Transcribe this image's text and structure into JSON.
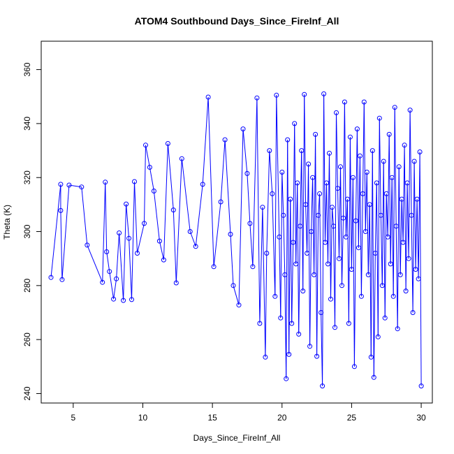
{
  "chart_data": {
    "type": "line",
    "title": "ATOM4 Southbound Days_Since_FireInf_All",
    "xlabel": "Days_Since_FireInf_All",
    "ylabel": "Theta (K)",
    "xlim": [
      2.7,
      30.8
    ],
    "ylim": [
      236.5,
      370.5
    ],
    "x_ticks": [
      5,
      10,
      15,
      20,
      25,
      30
    ],
    "y_ticks": [
      240,
      260,
      280,
      300,
      320,
      340,
      360
    ],
    "grid": false,
    "legend": "none",
    "marker": "open-circle",
    "series": [
      {
        "color": "#0000ff",
        "points": [
          [
            3.4,
            283.0
          ],
          [
            4.1,
            317.5
          ],
          [
            4.1,
            307.8
          ],
          [
            4.2,
            282.2
          ],
          [
            4.7,
            317.2
          ],
          [
            5.6,
            316.5
          ],
          [
            6.0,
            295.0
          ],
          [
            7.1,
            281.2
          ],
          [
            7.3,
            318.3
          ],
          [
            7.4,
            292.5
          ],
          [
            7.6,
            285.2
          ],
          [
            7.9,
            275.0
          ],
          [
            8.1,
            282.5
          ],
          [
            8.3,
            299.5
          ],
          [
            8.6,
            274.5
          ],
          [
            8.8,
            310.2
          ],
          [
            9.0,
            297.5
          ],
          [
            9.2,
            274.8
          ],
          [
            9.4,
            318.5
          ],
          [
            9.6,
            292.0
          ],
          [
            10.1,
            303.0
          ],
          [
            10.2,
            332.0
          ],
          [
            10.5,
            323.8
          ],
          [
            10.8,
            315.0
          ],
          [
            11.2,
            296.5
          ],
          [
            11.5,
            289.5
          ],
          [
            11.8,
            332.6
          ],
          [
            12.2,
            308.0
          ],
          [
            12.4,
            281.0
          ],
          [
            12.8,
            327.0
          ],
          [
            13.4,
            300.0
          ],
          [
            13.8,
            294.5
          ],
          [
            14.3,
            317.5
          ],
          [
            14.7,
            349.8
          ],
          [
            15.1,
            287.0
          ],
          [
            15.6,
            311.0
          ],
          [
            15.9,
            334.0
          ],
          [
            16.3,
            299.0
          ],
          [
            16.5,
            280.0
          ],
          [
            16.9,
            272.8
          ],
          [
            17.2,
            338.0
          ],
          [
            17.5,
            321.5
          ],
          [
            17.7,
            303.0
          ],
          [
            17.9,
            287.0
          ],
          [
            18.2,
            349.5
          ],
          [
            18.4,
            266.0
          ],
          [
            18.6,
            309.0
          ],
          [
            18.8,
            253.5
          ],
          [
            18.9,
            292.0
          ],
          [
            19.1,
            330.0
          ],
          [
            19.3,
            314.0
          ],
          [
            19.5,
            276.0
          ],
          [
            19.6,
            350.5
          ],
          [
            19.8,
            298.0
          ],
          [
            19.9,
            268.0
          ],
          [
            20.0,
            322.0
          ],
          [
            20.1,
            306.0
          ],
          [
            20.2,
            284.0
          ],
          [
            20.3,
            245.5
          ],
          [
            20.4,
            334.0
          ],
          [
            20.5,
            254.5
          ],
          [
            20.6,
            312.0
          ],
          [
            20.7,
            266.0
          ],
          [
            20.8,
            296.0
          ],
          [
            20.9,
            340.0
          ],
          [
            21.0,
            288.0
          ],
          [
            21.1,
            318.0
          ],
          [
            21.2,
            262.0
          ],
          [
            21.3,
            302.0
          ],
          [
            21.4,
            330.0
          ],
          [
            21.5,
            278.0
          ],
          [
            21.6,
            350.8
          ],
          [
            21.7,
            310.0
          ],
          [
            21.8,
            292.0
          ],
          [
            21.9,
            325.0
          ],
          [
            22.0,
            257.5
          ],
          [
            22.1,
            300.0
          ],
          [
            22.2,
            320.0
          ],
          [
            22.3,
            284.0
          ],
          [
            22.4,
            336.0
          ],
          [
            22.5,
            253.8
          ],
          [
            22.6,
            306.0
          ],
          [
            22.7,
            314.0
          ],
          [
            22.8,
            270.0
          ],
          [
            22.9,
            242.8
          ],
          [
            23.0,
            351.0
          ],
          [
            23.1,
            296.0
          ],
          [
            23.2,
            318.0
          ],
          [
            23.3,
            288.0
          ],
          [
            23.4,
            329.0
          ],
          [
            23.5,
            275.0
          ],
          [
            23.6,
            309.0
          ],
          [
            23.7,
            302.0
          ],
          [
            23.8,
            264.5
          ],
          [
            23.9,
            344.0
          ],
          [
            24.0,
            316.0
          ],
          [
            24.1,
            290.0
          ],
          [
            24.2,
            324.0
          ],
          [
            24.3,
            280.0
          ],
          [
            24.4,
            305.0
          ],
          [
            24.5,
            348.0
          ],
          [
            24.6,
            298.0
          ],
          [
            24.7,
            312.0
          ],
          [
            24.8,
            266.0
          ],
          [
            24.9,
            335.0
          ],
          [
            25.0,
            286.0
          ],
          [
            25.1,
            320.0
          ],
          [
            25.2,
            250.0
          ],
          [
            25.3,
            304.0
          ],
          [
            25.4,
            338.0
          ],
          [
            25.5,
            294.0
          ],
          [
            25.6,
            328.0
          ],
          [
            25.7,
            276.0
          ],
          [
            25.8,
            314.0
          ],
          [
            25.9,
            348.0
          ],
          [
            26.0,
            300.0
          ],
          [
            26.1,
            322.0
          ],
          [
            26.2,
            284.0
          ],
          [
            26.3,
            310.0
          ],
          [
            26.4,
            253.5
          ],
          [
            26.5,
            330.0
          ],
          [
            26.6,
            246.0
          ],
          [
            26.7,
            292.0
          ],
          [
            26.8,
            318.0
          ],
          [
            26.9,
            261.0
          ],
          [
            27.0,
            342.0
          ],
          [
            27.1,
            306.0
          ],
          [
            27.2,
            280.0
          ],
          [
            27.3,
            326.0
          ],
          [
            27.4,
            268.0
          ],
          [
            27.5,
            314.0
          ],
          [
            27.6,
            298.0
          ],
          [
            27.7,
            336.0
          ],
          [
            27.8,
            288.0
          ],
          [
            27.9,
            320.0
          ],
          [
            28.0,
            276.0
          ],
          [
            28.1,
            346.0
          ],
          [
            28.2,
            302.0
          ],
          [
            28.3,
            264.0
          ],
          [
            28.4,
            324.0
          ],
          [
            28.5,
            284.0
          ],
          [
            28.6,
            312.0
          ],
          [
            28.7,
            296.0
          ],
          [
            28.8,
            332.0
          ],
          [
            28.9,
            278.0
          ],
          [
            29.0,
            318.0
          ],
          [
            29.1,
            290.0
          ],
          [
            29.2,
            345.0
          ],
          [
            29.3,
            306.0
          ],
          [
            29.4,
            270.0
          ],
          [
            29.5,
            326.0
          ],
          [
            29.6,
            286.0
          ],
          [
            29.7,
            312.0
          ],
          [
            29.8,
            282.5
          ],
          [
            29.9,
            329.5
          ],
          [
            30.0,
            242.8
          ]
        ]
      }
    ]
  }
}
